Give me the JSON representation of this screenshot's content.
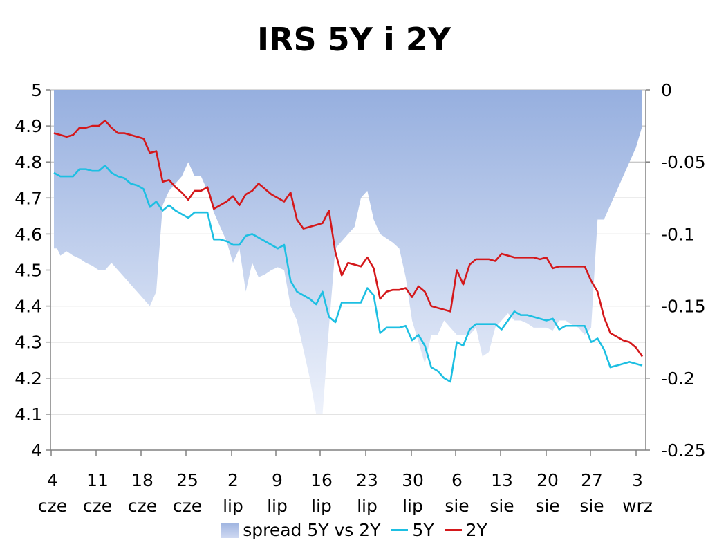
{
  "chart_data": {
    "type": "line",
    "title": "IRS 5Y i 2Y",
    "x_tick_labels": [
      {
        "day": "4",
        "month": "cze"
      },
      {
        "day": "11",
        "month": "cze"
      },
      {
        "day": "18",
        "month": "cze"
      },
      {
        "day": "25",
        "month": "cze"
      },
      {
        "day": "2",
        "month": "lip"
      },
      {
        "day": "9",
        "month": "lip"
      },
      {
        "day": "16",
        "month": "lip"
      },
      {
        "day": "23",
        "month": "lip"
      },
      {
        "day": "30",
        "month": "lip"
      },
      {
        "day": "6",
        "month": "sie"
      },
      {
        "day": "13",
        "month": "sie"
      },
      {
        "day": "20",
        "month": "sie"
      },
      {
        "day": "27",
        "month": "sie"
      },
      {
        "day": "3",
        "month": "wrz"
      }
    ],
    "y_left": {
      "min": 4,
      "max": 5,
      "ticks": [
        "4",
        "4.1",
        "4.2",
        "4.3",
        "4.4",
        "4.5",
        "4.6",
        "4.7",
        "4.8",
        "4.9",
        "5"
      ]
    },
    "y_right": {
      "min": -0.25,
      "max": 0,
      "ticks": [
        "-0.25",
        "-0.2",
        "-0.15",
        "-0.1",
        "-0.05",
        "0"
      ]
    },
    "grid": true,
    "legend_position": "bottom",
    "series": [
      {
        "name": "spread 5Y vs 2Y",
        "type": "area",
        "axis": "right",
        "color": "#9fb4e0",
        "x": [
          0,
          0.5,
          1,
          2,
          3,
          4,
          5,
          6,
          7,
          8,
          9,
          10,
          11,
          12,
          13,
          14,
          15,
          16,
          17,
          18,
          19,
          20,
          21,
          22,
          23,
          24,
          25,
          26,
          27,
          28,
          29,
          30,
          31,
          32,
          33,
          34,
          35,
          36,
          37,
          38,
          39,
          40,
          41,
          42,
          43,
          44,
          45,
          46,
          47,
          48,
          49,
          50,
          51,
          52,
          53,
          54,
          55,
          56,
          57,
          58,
          59,
          60,
          61,
          62,
          63,
          64,
          65,
          66,
          67,
          68,
          69,
          70,
          71,
          72,
          73,
          74,
          75,
          76,
          77,
          78,
          79,
          80,
          81,
          82,
          83,
          84,
          85,
          86,
          87,
          88,
          89,
          90,
          91,
          92
        ],
        "values": [
          -0.11,
          -0.11,
          -0.115,
          -0.112,
          -0.115,
          -0.117,
          -0.12,
          -0.122,
          -0.125,
          -0.125,
          -0.12,
          -0.125,
          -0.13,
          -0.135,
          -0.14,
          -0.145,
          -0.15,
          -0.14,
          -0.08,
          -0.07,
          -0.065,
          -0.06,
          -0.05,
          -0.06,
          -0.06,
          -0.07,
          -0.085,
          -0.095,
          -0.105,
          -0.12,
          -0.11,
          -0.14,
          -0.12,
          -0.13,
          -0.128,
          -0.125,
          -0.123,
          -0.125,
          -0.15,
          -0.16,
          -0.18,
          -0.2,
          -0.225,
          -0.225,
          -0.165,
          -0.11,
          -0.105,
          -0.1,
          -0.095,
          -0.075,
          -0.07,
          -0.09,
          -0.1,
          -0.103,
          -0.106,
          -0.11,
          -0.13,
          -0.16,
          -0.175,
          -0.19,
          -0.17,
          -0.17,
          -0.16,
          -0.165,
          -0.17,
          -0.17,
          -0.17,
          -0.165,
          -0.185,
          -0.182,
          -0.165,
          -0.16,
          -0.155,
          -0.16,
          -0.16,
          -0.162,
          -0.165,
          -0.165,
          -0.165,
          -0.167,
          -0.16,
          -0.16,
          -0.163,
          -0.165,
          -0.17,
          -0.165,
          -0.09,
          -0.09,
          -0.08,
          -0.07,
          -0.06,
          -0.05,
          -0.04,
          -0.025
        ]
      },
      {
        "name": "5Y",
        "type": "line",
        "axis": "left",
        "color": "#1dbfe2",
        "x": [
          0,
          1,
          2,
          3,
          4,
          5,
          6,
          7,
          8,
          9,
          10,
          11,
          12,
          13,
          14,
          15,
          16,
          17,
          18,
          19,
          20,
          21,
          22,
          23,
          24,
          25,
          26,
          27,
          28,
          29,
          30,
          31,
          32,
          33,
          34,
          35,
          36,
          37,
          38,
          39,
          40,
          41,
          42,
          43,
          44,
          45,
          46,
          47,
          48,
          49,
          50,
          51,
          52,
          53,
          54,
          55,
          56,
          57,
          58,
          59,
          60,
          61,
          62,
          63,
          64,
          65,
          66,
          67,
          68,
          69,
          70,
          71,
          72,
          73,
          74,
          75,
          76,
          77,
          78,
          79,
          80,
          81,
          82,
          83,
          84,
          85,
          86,
          87,
          88,
          89,
          90,
          91,
          92
        ],
        "values": [
          4.77,
          4.76,
          4.76,
          4.76,
          4.78,
          4.78,
          4.775,
          4.775,
          4.79,
          4.77,
          4.76,
          4.755,
          4.74,
          4.735,
          4.725,
          4.675,
          4.69,
          4.665,
          4.68,
          4.665,
          4.655,
          4.645,
          4.66,
          4.66,
          4.66,
          4.585,
          4.585,
          4.58,
          4.57,
          4.57,
          4.595,
          4.6,
          4.59,
          4.58,
          4.57,
          4.56,
          4.57,
          4.47,
          4.44,
          4.43,
          4.42,
          4.405,
          4.44,
          4.37,
          4.355,
          4.41,
          4.41,
          4.41,
          4.41,
          4.45,
          4.43,
          4.325,
          4.34,
          4.34,
          4.34,
          4.345,
          4.305,
          4.32,
          4.29,
          4.23,
          4.22,
          4.2,
          4.19,
          4.3,
          4.29,
          4.335,
          4.35,
          4.35,
          4.35,
          4.35,
          4.335,
          4.36,
          4.385,
          4.375,
          4.375,
          4.37,
          4.365,
          4.36,
          4.365,
          4.335,
          4.345,
          4.345,
          4.345,
          4.345,
          4.3,
          4.31,
          4.28,
          4.23,
          4.235,
          4.24,
          4.245,
          4.24,
          4.235
        ]
      },
      {
        "name": "2Y",
        "type": "line",
        "axis": "left",
        "color": "#d4181b",
        "x": [
          0,
          1,
          2,
          3,
          4,
          5,
          6,
          7,
          8,
          9,
          10,
          11,
          12,
          13,
          14,
          15,
          16,
          17,
          18,
          19,
          20,
          21,
          22,
          23,
          24,
          25,
          26,
          27,
          28,
          29,
          30,
          31,
          32,
          33,
          34,
          35,
          36,
          37,
          38,
          39,
          40,
          41,
          42,
          43,
          44,
          45,
          46,
          47,
          48,
          49,
          50,
          51,
          52,
          53,
          54,
          55,
          56,
          57,
          58,
          59,
          60,
          61,
          62,
          63,
          64,
          65,
          66,
          67,
          68,
          69,
          70,
          71,
          72,
          73,
          74,
          75,
          76,
          77,
          78,
          79,
          80,
          81,
          82,
          83,
          84,
          85,
          86,
          87,
          88,
          89,
          90,
          91,
          92
        ],
        "values": [
          4.88,
          4.875,
          4.87,
          4.875,
          4.895,
          4.895,
          4.9,
          4.9,
          4.915,
          4.895,
          4.88,
          4.88,
          4.875,
          4.87,
          4.865,
          4.825,
          4.83,
          4.745,
          4.75,
          4.73,
          4.715,
          4.695,
          4.72,
          4.72,
          4.73,
          4.67,
          4.68,
          4.69,
          4.705,
          4.68,
          4.71,
          4.72,
          4.74,
          4.725,
          4.71,
          4.7,
          4.69,
          4.715,
          4.64,
          4.615,
          4.62,
          4.625,
          4.63,
          4.665,
          4.55,
          4.485,
          4.52,
          4.515,
          4.51,
          4.535,
          4.505,
          4.42,
          4.44,
          4.445,
          4.445,
          4.45,
          4.425,
          4.455,
          4.44,
          4.4,
          4.395,
          4.39,
          4.385,
          4.5,
          4.46,
          4.515,
          4.53,
          4.53,
          4.53,
          4.525,
          4.545,
          4.54,
          4.535,
          4.535,
          4.535,
          4.535,
          4.53,
          4.535,
          4.505,
          4.51,
          4.51,
          4.51,
          4.51,
          4.51,
          4.47,
          4.44,
          4.37,
          4.325,
          4.315,
          4.305,
          4.3,
          4.285,
          4.26
        ]
      }
    ]
  }
}
